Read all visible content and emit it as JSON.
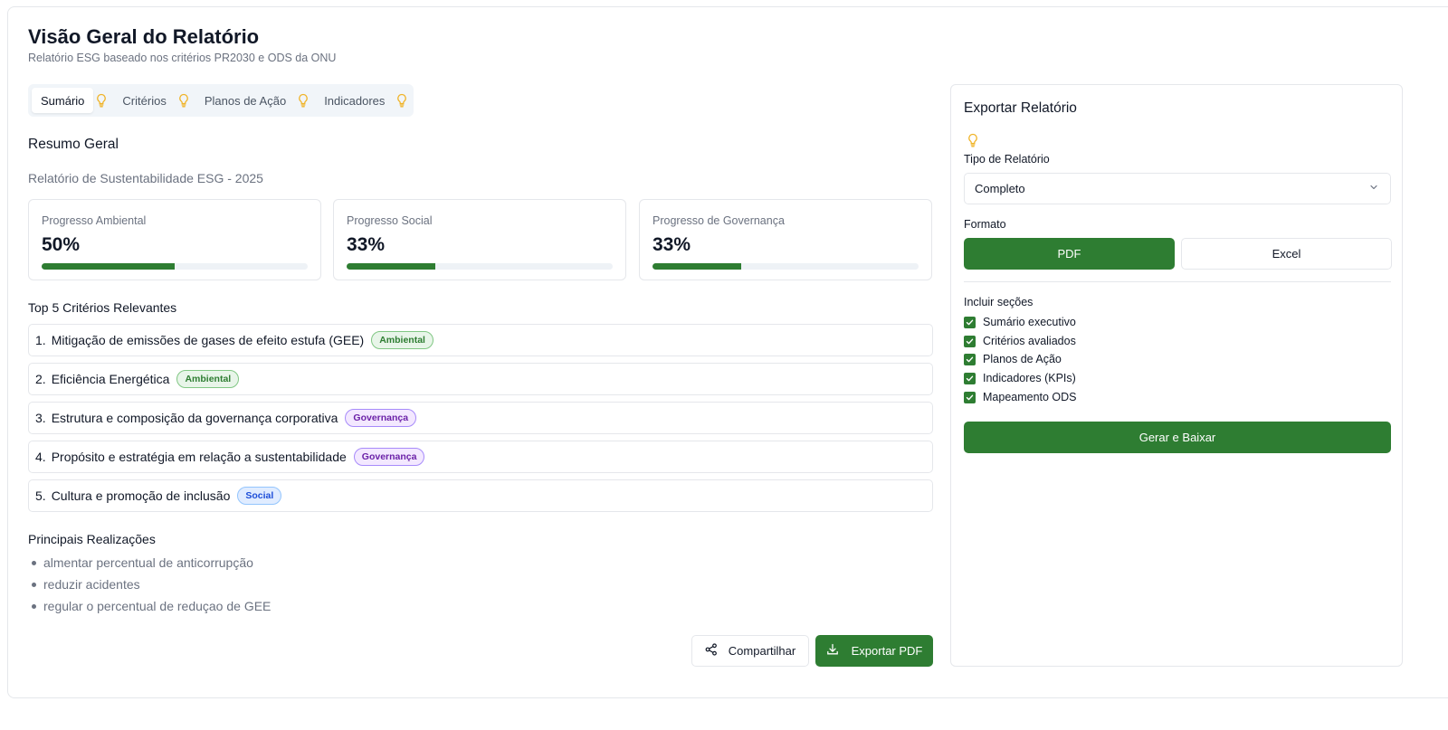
{
  "header": {
    "title": "Visão Geral do Relatório",
    "subtitle": "Relatório ESG baseado nos critérios PR2030 e ODS da ONU"
  },
  "tabs": [
    {
      "label": "Sumário",
      "active": true
    },
    {
      "label": "Critérios",
      "active": false
    },
    {
      "label": "Planos de Ação",
      "active": false
    },
    {
      "label": "Indicadores",
      "active": false
    }
  ],
  "summary": {
    "title": "Resumo Geral",
    "report_name": "Relatório de Sustentabilidade ESG - 2025"
  },
  "progress": [
    {
      "label": "Progresso Ambiental",
      "value": "50%",
      "fraction": 0.5
    },
    {
      "label": "Progresso Social",
      "value": "33%",
      "fraction": 0.333
    },
    {
      "label": "Progresso de Governança",
      "value": "33%",
      "fraction": 0.333
    }
  ],
  "criteria": {
    "title": "Top 5 Critérios Relevantes",
    "items": [
      {
        "num": "1.",
        "text": "Mitigação de emissões de gases de efeito estufa (GEE)",
        "badge": "Ambiental",
        "kind": "amb"
      },
      {
        "num": "2.",
        "text": "Eficiência Energética",
        "badge": "Ambiental",
        "kind": "amb"
      },
      {
        "num": "3.",
        "text": "Estrutura e composição da governança corporativa",
        "badge": "Governança",
        "kind": "gov"
      },
      {
        "num": "4.",
        "text": "Propósito e estratégia em relação a sustentabilidade",
        "badge": "Governança",
        "kind": "gov"
      },
      {
        "num": "5.",
        "text": "Cultura e promoção de inclusão",
        "badge": "Social",
        "kind": "soc"
      }
    ]
  },
  "achievements": {
    "title": "Principais Realizações",
    "items": [
      "almentar percentual de anticorrupção",
      "reduzir acidentes",
      "regular o percentual de reduçao de GEE"
    ]
  },
  "actions": {
    "share_label": "Compartilhar",
    "export_label": "Exportar PDF"
  },
  "export_panel": {
    "title": "Exportar Relatório",
    "type_label": "Tipo de Relatório",
    "type_value": "Completo",
    "format_label": "Formato",
    "format_pdf": "PDF",
    "format_excel": "Excel",
    "sections_label": "Incluir seções",
    "sections": [
      {
        "label": "Sumário executivo",
        "checked": true
      },
      {
        "label": "Critérios avaliados",
        "checked": true
      },
      {
        "label": "Planos de Ação",
        "checked": true
      },
      {
        "label": "Indicadores (KPIs)",
        "checked": true
      },
      {
        "label": "Mapeamento ODS",
        "checked": true
      }
    ],
    "generate_label": "Gerar e Baixar"
  },
  "colors": {
    "primary_green": "#2e7d32",
    "bulb_yellow": "#f0b429"
  },
  "icons": [
    "lightbulb-icon",
    "share-icon",
    "download-icon",
    "chevron-down-icon",
    "check-icon"
  ]
}
